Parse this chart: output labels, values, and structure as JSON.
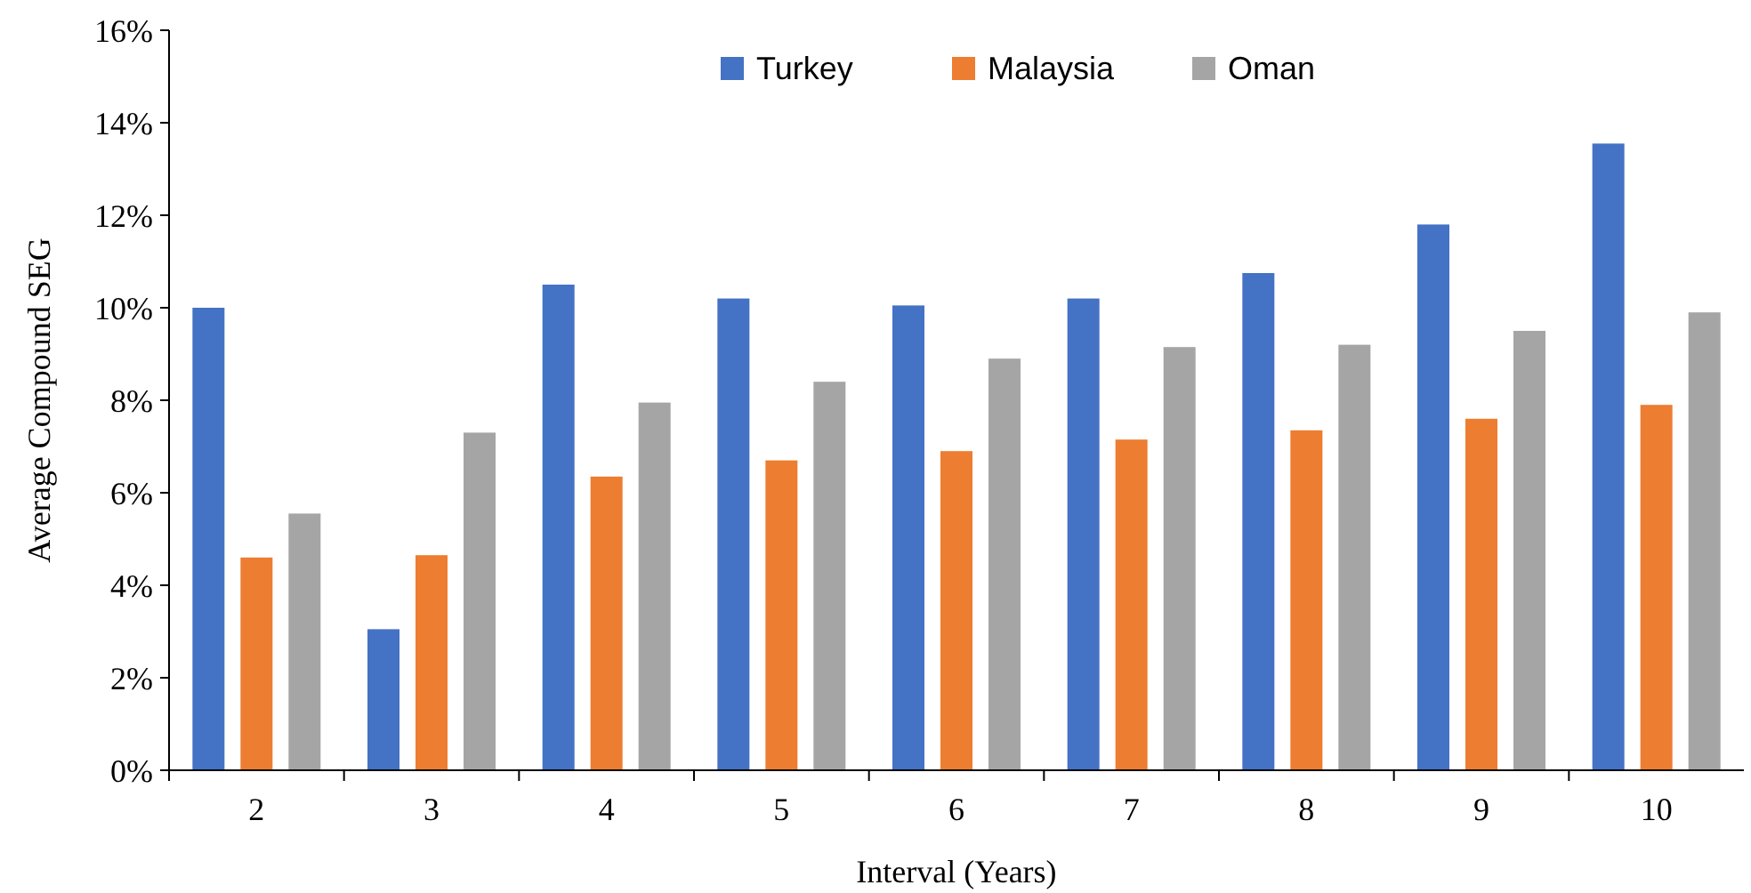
{
  "chart_data": {
    "type": "bar",
    "xlabel": "Interval (Years)",
    "ylabel": "Average Compound SEG",
    "categories": [
      "2",
      "3",
      "4",
      "5",
      "6",
      "7",
      "8",
      "9",
      "10"
    ],
    "series": [
      {
        "name": "Turkey",
        "color": "#4472c4",
        "values": [
          10.0,
          3.05,
          10.5,
          10.2,
          10.05,
          10.2,
          10.75,
          11.8,
          13.55
        ]
      },
      {
        "name": "Malaysia",
        "color": "#ed7d31",
        "values": [
          4.6,
          4.65,
          6.35,
          6.7,
          6.9,
          7.15,
          7.35,
          7.6,
          7.9
        ]
      },
      {
        "name": "Oman",
        "color": "#a5a5a5",
        "values": [
          5.55,
          7.3,
          7.95,
          8.4,
          8.9,
          9.15,
          9.2,
          9.5,
          9.9
        ]
      }
    ],
    "ylim": [
      0,
      16
    ],
    "yticks": [
      {
        "value": 0,
        "label": "0%"
      },
      {
        "value": 2,
        "label": "2%"
      },
      {
        "value": 4,
        "label": "4%"
      },
      {
        "value": 6,
        "label": "6%"
      },
      {
        "value": 8,
        "label": "8%"
      },
      {
        "value": 10,
        "label": "10%"
      },
      {
        "value": 12,
        "label": "12%"
      },
      {
        "value": 14,
        "label": "14%"
      },
      {
        "value": 16,
        "label": "16%"
      }
    ],
    "grid": false,
    "legend": "top"
  }
}
